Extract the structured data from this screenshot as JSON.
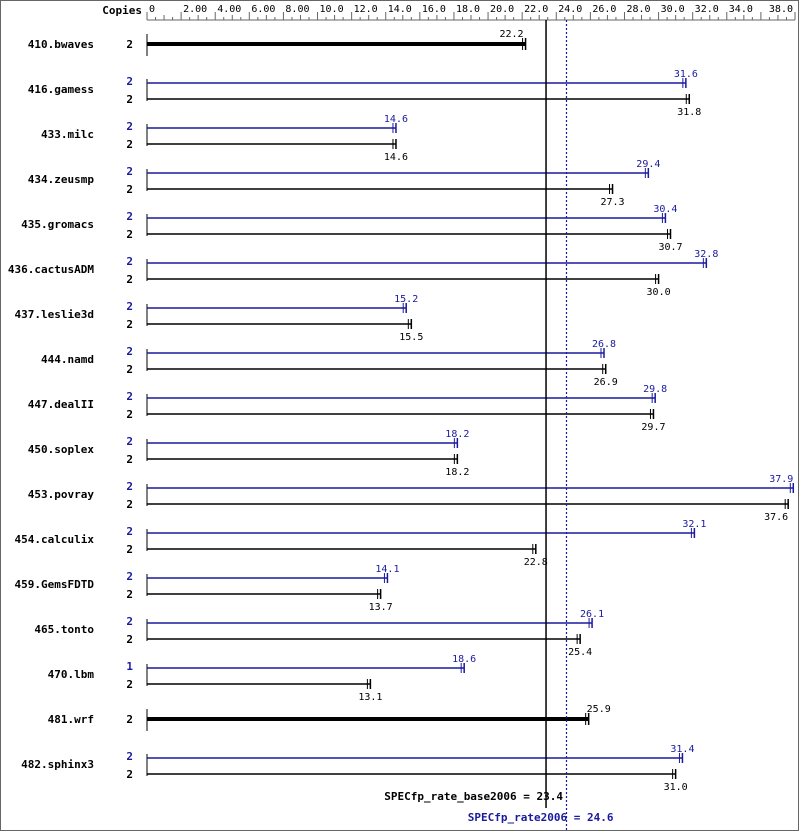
{
  "chart_data": {
    "type": "bar",
    "copies_header": "Copies",
    "x_ticks": [
      "0",
      "2.00",
      "4.00",
      "6.00",
      "8.00",
      "10.0",
      "12.0",
      "14.0",
      "16.0",
      "18.0",
      "20.0",
      "22.0",
      "24.0",
      "26.0",
      "28.0",
      "30.0",
      "32.0",
      "34.0",
      "38.0"
    ],
    "x_tick_values": [
      0,
      2,
      4,
      6,
      8,
      10,
      12,
      14,
      16,
      18,
      20,
      22,
      24,
      26,
      28,
      30,
      32,
      34,
      38
    ],
    "xlim": [
      0,
      38
    ],
    "colors": {
      "peak": "#1a1a9e",
      "base": "#000000",
      "frame": "#666666"
    },
    "benchmarks": [
      {
        "name": "410.bwaves",
        "shared": true,
        "base_copies": "2",
        "base": 22.2,
        "base_label": "22.2"
      },
      {
        "name": "416.gamess",
        "peak_copies": "2",
        "peak": 31.6,
        "peak_label": "31.6",
        "base_copies": "2",
        "base": 31.8,
        "base_label": "31.8"
      },
      {
        "name": "433.milc",
        "peak_copies": "2",
        "peak": 14.6,
        "peak_label": "14.6",
        "base_copies": "2",
        "base": 14.6,
        "base_label": "14.6"
      },
      {
        "name": "434.zeusmp",
        "peak_copies": "2",
        "peak": 29.4,
        "peak_label": "29.4",
        "base_copies": "2",
        "base": 27.3,
        "base_label": "27.3"
      },
      {
        "name": "435.gromacs",
        "peak_copies": "2",
        "peak": 30.4,
        "peak_label": "30.4",
        "base_copies": "2",
        "base": 30.7,
        "base_label": "30.7"
      },
      {
        "name": "436.cactusADM",
        "peak_copies": "2",
        "peak": 32.8,
        "peak_label": "32.8",
        "base_copies": "2",
        "base": 30.0,
        "base_label": "30.0"
      },
      {
        "name": "437.leslie3d",
        "peak_copies": "2",
        "peak": 15.2,
        "peak_label": "15.2",
        "base_copies": "2",
        "base": 15.5,
        "base_label": "15.5"
      },
      {
        "name": "444.namd",
        "peak_copies": "2",
        "peak": 26.8,
        "peak_label": "26.8",
        "base_copies": "2",
        "base": 26.9,
        "base_label": "26.9"
      },
      {
        "name": "447.dealII",
        "peak_copies": "2",
        "peak": 29.8,
        "peak_label": "29.8",
        "base_copies": "2",
        "base": 29.7,
        "base_label": "29.7"
      },
      {
        "name": "450.soplex",
        "peak_copies": "2",
        "peak": 18.2,
        "peak_label": "18.2",
        "base_copies": "2",
        "base": 18.2,
        "base_label": "18.2"
      },
      {
        "name": "453.povray",
        "peak_copies": "2",
        "peak": 37.9,
        "peak_label": "37.9",
        "base_copies": "2",
        "base": 37.6,
        "base_label": "37.6"
      },
      {
        "name": "454.calculix",
        "peak_copies": "2",
        "peak": 32.1,
        "peak_label": "32.1",
        "base_copies": "2",
        "base": 22.8,
        "base_label": "22.8"
      },
      {
        "name": "459.GemsFDTD",
        "peak_copies": "2",
        "peak": 14.1,
        "peak_label": "14.1",
        "base_copies": "2",
        "base": 13.7,
        "base_label": "13.7"
      },
      {
        "name": "465.tonto",
        "peak_copies": "2",
        "peak": 26.1,
        "peak_label": "26.1",
        "base_copies": "2",
        "base": 25.4,
        "base_label": "25.4"
      },
      {
        "name": "470.lbm",
        "peak_copies": "1",
        "peak": 18.6,
        "peak_label": "18.6",
        "base_copies": "2",
        "base": 13.1,
        "base_label": "13.1"
      },
      {
        "name": "481.wrf",
        "shared": true,
        "base_copies": "2",
        "base": 25.9,
        "base_label": "25.9"
      },
      {
        "name": "482.sphinx3",
        "peak_copies": "2",
        "peak": 31.4,
        "peak_label": "31.4",
        "base_copies": "2",
        "base": 31.0,
        "base_label": "31.0"
      }
    ],
    "base_mean": {
      "value": 23.4,
      "label": "SPECfp_rate_base2006 = 23.4"
    },
    "peak_mean": {
      "value": 24.6,
      "label": "SPECfp_rate2006 = 24.6"
    }
  }
}
